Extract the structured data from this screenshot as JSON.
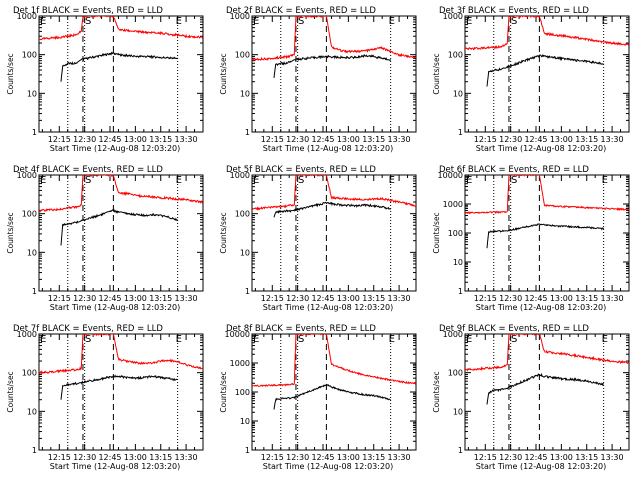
{
  "figure": {
    "panel_title_suffix": " BLACK = Events, RED = LLD",
    "xlabel": "Start Time (12-Aug-08 12:03:20)",
    "ylabel": "Counts/sec",
    "x_tick_labels": [
      "12:15",
      "12:30",
      "12:45",
      "13:00",
      "13:15",
      "13:30"
    ],
    "marker_labels": {
      "start": "E",
      "s": "S",
      "end": "E"
    },
    "colors": {
      "events": "#000000",
      "lld": "#ff0000",
      "axes": "#000000"
    }
  },
  "chart_data": [
    {
      "type": "line",
      "title": "Det 1f",
      "ylim": [
        1,
        1000
      ],
      "yscale": "log",
      "x_unit": "HH:MM (12-Aug-08)",
      "xlim": [
        "12:03",
        "13:40"
      ],
      "y_tick_labels": [
        "1",
        "10",
        "100",
        "1000"
      ],
      "markers": {
        "dotted": [
          "12:20",
          "12:30",
          "13:25"
        ],
        "dashed": [
          "12:29",
          "12:47"
        ]
      },
      "series": [
        {
          "name": "BLACK = Events",
          "x": [
            "12:16",
            "12:17",
            "12:20",
            "12:22",
            "12:24",
            "12:26",
            "12:27",
            "12:28",
            "12:47",
            "12:50",
            "12:55",
            "13:00",
            "13:05",
            "13:10",
            "13:15",
            "13:20",
            "13:25"
          ],
          "values": [
            20,
            50,
            60,
            60,
            60,
            65,
            70,
            75,
            110,
            100,
            95,
            90,
            90,
            88,
            85,
            82,
            80
          ]
        },
        {
          "name": "RED = LLD",
          "x": [
            "12:03",
            "12:10",
            "12:15",
            "12:20",
            "12:25",
            "12:28",
            "12:29",
            "12:47",
            "12:50",
            "12:55",
            "13:00",
            "13:05",
            "13:10",
            "13:15",
            "13:20",
            "13:25",
            "13:30",
            "13:35",
            "13:40"
          ],
          "values": [
            250,
            270,
            280,
            300,
            330,
            400,
            1000,
            1000,
            450,
            420,
            400,
            380,
            370,
            360,
            340,
            320,
            300,
            290,
            280
          ]
        }
      ]
    },
    {
      "type": "line",
      "title": "Det 2f",
      "ylim": [
        1,
        1000
      ],
      "yscale": "log",
      "x_unit": "HH:MM (12-Aug-08)",
      "xlim": [
        "12:03",
        "13:40"
      ],
      "y_tick_labels": [
        "1",
        "10",
        "100",
        "1000"
      ],
      "markers": {
        "dotted": [
          "12:20",
          "12:30",
          "13:25"
        ],
        "dashed": [
          "12:29",
          "12:47"
        ]
      },
      "series": [
        {
          "name": "BLACK = Events",
          "x": [
            "12:16",
            "12:17",
            "12:20",
            "12:22",
            "12:24",
            "12:26",
            "12:27",
            "12:28",
            "12:47",
            "12:50",
            "12:55",
            "13:00",
            "13:05",
            "13:10",
            "13:15",
            "13:20",
            "13:25"
          ],
          "values": [
            25,
            55,
            60,
            60,
            62,
            65,
            70,
            75,
            90,
            88,
            85,
            85,
            85,
            95,
            90,
            80,
            75
          ]
        },
        {
          "name": "RED = LLD",
          "x": [
            "12:03",
            "12:10",
            "12:15",
            "12:20",
            "12:25",
            "12:28",
            "12:29",
            "12:47",
            "12:50",
            "12:55",
            "13:00",
            "13:05",
            "13:10",
            "13:15",
            "13:20",
            "13:25",
            "13:30",
            "13:35",
            "13:40"
          ],
          "values": [
            75,
            78,
            80,
            85,
            90,
            100,
            1000,
            1000,
            160,
            130,
            120,
            120,
            125,
            140,
            150,
            120,
            100,
            90,
            85
          ]
        }
      ]
    },
    {
      "type": "line",
      "title": "Det 3f",
      "ylim": [
        1,
        1000
      ],
      "yscale": "log",
      "x_unit": "HH:MM (12-Aug-08)",
      "xlim": [
        "12:03",
        "13:40"
      ],
      "y_tick_labels": [
        "1",
        "10",
        "100",
        "1000"
      ],
      "markers": {
        "dotted": [
          "12:20",
          "12:30",
          "13:25"
        ],
        "dashed": [
          "12:29",
          "12:47"
        ]
      },
      "series": [
        {
          "name": "BLACK = Events",
          "x": [
            "12:16",
            "12:17",
            "12:20",
            "12:22",
            "12:24",
            "12:26",
            "12:27",
            "12:28",
            "12:47",
            "12:50",
            "12:55",
            "13:00",
            "13:05",
            "13:10",
            "13:15",
            "13:20",
            "13:25"
          ],
          "values": [
            15,
            35,
            40,
            40,
            42,
            45,
            45,
            48,
            95,
            90,
            85,
            80,
            75,
            70,
            68,
            62,
            58
          ]
        },
        {
          "name": "RED = LLD",
          "x": [
            "12:03",
            "12:10",
            "12:15",
            "12:20",
            "12:25",
            "12:28",
            "12:29",
            "12:47",
            "12:50",
            "12:55",
            "13:00",
            "13:05",
            "13:10",
            "13:15",
            "13:20",
            "13:25",
            "13:30",
            "13:35",
            "13:40"
          ],
          "values": [
            140,
            145,
            150,
            155,
            160,
            200,
            1000,
            1000,
            350,
            330,
            310,
            290,
            270,
            250,
            230,
            210,
            200,
            190,
            180
          ]
        }
      ]
    },
    {
      "type": "line",
      "title": "Det 4f",
      "ylim": [
        1,
        1000
      ],
      "yscale": "log",
      "x_unit": "HH:MM (12-Aug-08)",
      "xlim": [
        "12:03",
        "13:40"
      ],
      "y_tick_labels": [
        "1",
        "10",
        "100",
        "1000"
      ],
      "markers": {
        "dotted": [
          "12:20",
          "12:30",
          "13:25"
        ],
        "dashed": [
          "12:29",
          "12:47"
        ]
      },
      "series": [
        {
          "name": "BLACK = Events",
          "x": [
            "12:16",
            "12:17",
            "12:20",
            "12:22",
            "12:24",
            "12:26",
            "12:27",
            "12:28",
            "12:47",
            "12:50",
            "12:55",
            "13:00",
            "13:05",
            "13:10",
            "13:15",
            "13:20",
            "13:25"
          ],
          "values": [
            15,
            50,
            55,
            55,
            58,
            60,
            62,
            65,
            120,
            110,
            100,
            95,
            90,
            95,
            90,
            80,
            70
          ]
        },
        {
          "name": "RED = LLD",
          "x": [
            "12:03",
            "12:10",
            "12:15",
            "12:20",
            "12:25",
            "12:28",
            "12:29",
            "12:47",
            "12:50",
            "12:55",
            "13:00",
            "13:05",
            "13:10",
            "13:15",
            "13:20",
            "13:25",
            "13:30",
            "13:35",
            "13:40"
          ],
          "values": [
            120,
            125,
            130,
            140,
            150,
            170,
            1000,
            1000,
            350,
            330,
            300,
            280,
            270,
            260,
            250,
            240,
            230,
            210,
            200
          ]
        }
      ]
    },
    {
      "type": "line",
      "title": "Det 5f",
      "ylim": [
        1,
        1000
      ],
      "yscale": "log",
      "x_unit": "HH:MM (12-Aug-08)",
      "xlim": [
        "12:03",
        "13:40"
      ],
      "y_tick_labels": [
        "1",
        "10",
        "100",
        "1000"
      ],
      "markers": {
        "dotted": [
          "12:20",
          "12:30",
          "13:25"
        ],
        "dashed": [
          "12:29",
          "12:47"
        ]
      },
      "series": [
        {
          "name": "BLACK = Events",
          "x": [
            "12:16",
            "12:17",
            "12:20",
            "12:22",
            "12:24",
            "12:26",
            "12:27",
            "12:28",
            "12:47",
            "12:50",
            "12:55",
            "13:00",
            "13:05",
            "13:10",
            "13:15",
            "13:20",
            "13:25"
          ],
          "values": [
            80,
            110,
            115,
            115,
            118,
            120,
            120,
            122,
            190,
            180,
            170,
            165,
            160,
            165,
            160,
            150,
            130
          ]
        },
        {
          "name": "RED = LLD",
          "x": [
            "12:03",
            "12:10",
            "12:15",
            "12:20",
            "12:25",
            "12:28",
            "12:29",
            "12:47",
            "12:50",
            "12:55",
            "13:00",
            "13:05",
            "13:10",
            "13:15",
            "13:20",
            "13:25",
            "13:30",
            "13:35",
            "13:40"
          ],
          "values": [
            130,
            140,
            145,
            150,
            160,
            170,
            1000,
            1000,
            260,
            250,
            240,
            235,
            230,
            240,
            245,
            220,
            200,
            180,
            160
          ]
        }
      ]
    },
    {
      "type": "line",
      "title": "Det 6f",
      "ylim": [
        1,
        10000
      ],
      "yscale": "log",
      "x_unit": "HH:MM (12-Aug-08)",
      "xlim": [
        "12:03",
        "13:40"
      ],
      "y_tick_labels": [
        "1",
        "10",
        "100",
        "1000",
        "10000"
      ],
      "markers": {
        "dotted": [
          "12:20",
          "12:30",
          "13:25"
        ],
        "dashed": [
          "12:29",
          "12:47"
        ]
      },
      "series": [
        {
          "name": "BLACK = Events",
          "x": [
            "12:16",
            "12:17",
            "12:20",
            "12:22",
            "12:24",
            "12:26",
            "12:27",
            "12:28",
            "12:47",
            "12:50",
            "12:55",
            "13:00",
            "13:05",
            "13:10",
            "13:15",
            "13:20",
            "13:25"
          ],
          "values": [
            30,
            110,
            115,
            115,
            115,
            118,
            118,
            120,
            200,
            190,
            180,
            170,
            165,
            160,
            155,
            150,
            140
          ]
        },
        {
          "name": "RED = LLD",
          "x": [
            "12:03",
            "12:10",
            "12:15",
            "12:20",
            "12:25",
            "12:28",
            "12:29",
            "12:47",
            "12:50",
            "12:55",
            "13:00",
            "13:05",
            "13:10",
            "13:15",
            "13:20",
            "13:25",
            "13:30",
            "13:35",
            "13:40"
          ],
          "values": [
            500,
            500,
            510,
            520,
            530,
            550,
            10000,
            10000,
            900,
            850,
            820,
            800,
            780,
            750,
            720,
            700,
            680,
            660,
            620
          ]
        }
      ]
    },
    {
      "type": "line",
      "title": "Det 7f",
      "ylim": [
        1,
        1000
      ],
      "yscale": "log",
      "x_unit": "HH:MM (12-Aug-08)",
      "xlim": [
        "12:03",
        "13:40"
      ],
      "y_tick_labels": [
        "1",
        "10",
        "100",
        "1000"
      ],
      "markers": {
        "dotted": [
          "12:20",
          "12:30",
          "13:25"
        ],
        "dashed": [
          "12:29",
          "12:47"
        ]
      },
      "series": [
        {
          "name": "BLACK = Events",
          "x": [
            "12:16",
            "12:17",
            "12:20",
            "12:22",
            "12:24",
            "12:26",
            "12:27",
            "12:28",
            "12:47",
            "12:50",
            "12:55",
            "13:00",
            "13:05",
            "13:10",
            "13:15",
            "13:20",
            "13:25"
          ],
          "values": [
            20,
            45,
            50,
            50,
            52,
            52,
            55,
            55,
            80,
            80,
            75,
            72,
            75,
            80,
            75,
            70,
            65
          ]
        },
        {
          "name": "RED = LLD",
          "x": [
            "12:03",
            "12:10",
            "12:15",
            "12:20",
            "12:25",
            "12:28",
            "12:29",
            "12:47",
            "12:50",
            "12:55",
            "13:00",
            "13:05",
            "13:10",
            "13:15",
            "13:20",
            "13:25",
            "13:30",
            "13:35",
            "13:40"
          ],
          "values": [
            100,
            105,
            110,
            115,
            120,
            130,
            1000,
            1000,
            220,
            200,
            180,
            175,
            180,
            200,
            210,
            190,
            160,
            140,
            130
          ]
        }
      ]
    },
    {
      "type": "line",
      "title": "Det 8f",
      "ylim": [
        1,
        10000
      ],
      "yscale": "log",
      "x_unit": "HH:MM (12-Aug-08)",
      "xlim": [
        "12:03",
        "13:40"
      ],
      "y_tick_labels": [
        "1",
        "10",
        "100",
        "1000",
        "10000"
      ],
      "markers": {
        "dotted": [
          "12:20",
          "12:30",
          "13:25"
        ],
        "dashed": [
          "12:29",
          "12:47"
        ]
      },
      "series": [
        {
          "name": "BLACK = Events",
          "x": [
            "12:16",
            "12:17",
            "12:20",
            "12:22",
            "12:24",
            "12:26",
            "12:27",
            "12:28",
            "12:47",
            "12:50",
            "12:55",
            "13:00",
            "13:05",
            "13:10",
            "13:15",
            "13:20",
            "13:25"
          ],
          "values": [
            25,
            55,
            60,
            60,
            62,
            62,
            65,
            65,
            180,
            150,
            120,
            100,
            90,
            80,
            75,
            65,
            55
          ]
        },
        {
          "name": "RED = LLD",
          "x": [
            "12:03",
            "12:10",
            "12:15",
            "12:20",
            "12:25",
            "12:28",
            "12:29",
            "12:47",
            "12:50",
            "12:55",
            "13:00",
            "13:05",
            "13:10",
            "13:15",
            "13:20",
            "13:25",
            "13:30",
            "13:35",
            "13:40"
          ],
          "values": [
            160,
            165,
            170,
            175,
            180,
            190,
            10000,
            10000,
            900,
            700,
            550,
            450,
            380,
            330,
            290,
            260,
            230,
            210,
            200
          ]
        }
      ]
    },
    {
      "type": "line",
      "title": "Det 9f",
      "ylim": [
        1,
        1000
      ],
      "yscale": "log",
      "x_unit": "HH:MM (12-Aug-08)",
      "xlim": [
        "12:03",
        "13:40"
      ],
      "y_tick_labels": [
        "1",
        "10",
        "100",
        "1000"
      ],
      "markers": {
        "dotted": [
          "12:20",
          "12:30",
          "13:25"
        ],
        "dashed": [
          "12:29",
          "12:47"
        ]
      },
      "series": [
        {
          "name": "BLACK = Events",
          "x": [
            "12:16",
            "12:17",
            "12:20",
            "12:22",
            "12:24",
            "12:26",
            "12:27",
            "12:28",
            "12:47",
            "12:50",
            "12:55",
            "13:00",
            "13:05",
            "13:10",
            "13:15",
            "13:20",
            "13:25"
          ],
          "values": [
            15,
            30,
            35,
            35,
            36,
            38,
            38,
            40,
            90,
            80,
            75,
            70,
            68,
            65,
            60,
            55,
            50
          ]
        },
        {
          "name": "RED = LLD",
          "x": [
            "12:03",
            "12:10",
            "12:15",
            "12:20",
            "12:25",
            "12:28",
            "12:29",
            "12:47",
            "12:50",
            "12:55",
            "13:00",
            "13:05",
            "13:10",
            "13:15",
            "13:20",
            "13:25",
            "13:30",
            "13:35",
            "13:40"
          ],
          "values": [
            120,
            125,
            130,
            135,
            140,
            160,
            1000,
            1000,
            350,
            330,
            310,
            290,
            270,
            250,
            230,
            210,
            200,
            190,
            180
          ]
        }
      ]
    }
  ]
}
